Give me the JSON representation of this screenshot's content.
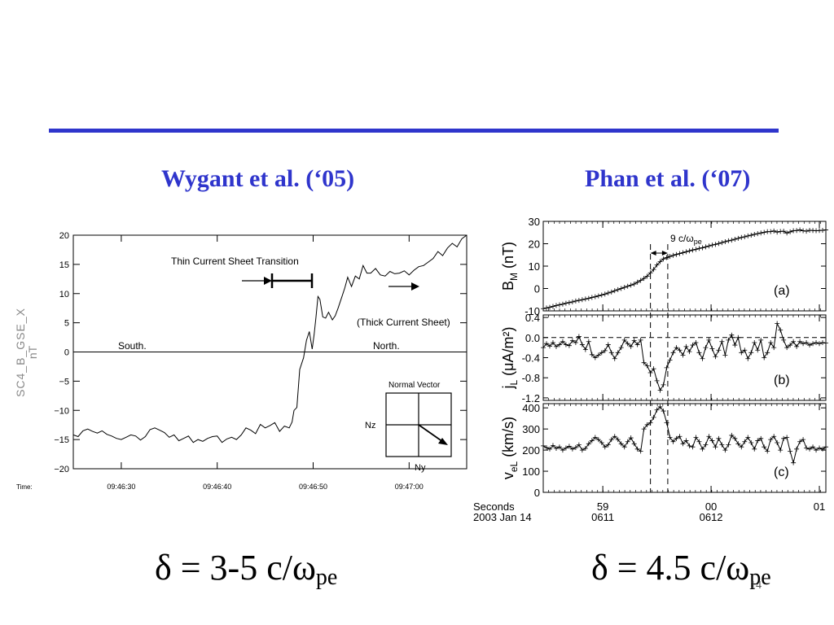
{
  "slide": {
    "left_heading": "Wygant et al. (‘05)",
    "right_heading": "Phan et al. (‘07)",
    "left_formula": {
      "main": "δ = 3-5 c/ω",
      "sub": "pe"
    },
    "right_formula": {
      "main": "δ = 4.5 c/ω",
      "sub": "pe"
    },
    "slide_number": "14",
    "colors": {
      "accent": "#2f35cc",
      "text": "#000000"
    }
  },
  "chart_data": [
    {
      "type": "line",
      "ylabel": "SC4_B_GSE_X",
      "yunit": "nT",
      "xlabel": "Time:",
      "ylim": [
        -20,
        20
      ],
      "yticks": [
        "20",
        "15",
        "10",
        "5",
        "0",
        "−5",
        "−10",
        "−15",
        "−20"
      ],
      "ytick_values": [
        20,
        15,
        10,
        5,
        0,
        -5,
        -10,
        -15,
        -20
      ],
      "xlim": [
        25,
        66
      ],
      "xticks": [
        "09:46:30",
        "09:46:40",
        "09:46:50",
        "09:47:00"
      ],
      "xtick_values": [
        30,
        40,
        50,
        60
      ],
      "annotations": {
        "thin": "Thin Current Sheet Transition",
        "thick": "(Thick Current Sheet)",
        "south": "South.",
        "north": "North."
      },
      "inset": {
        "title": "Normal Vector",
        "nz": "Nz",
        "ny": "Ny"
      },
      "x": [
        25,
        25.5,
        26,
        26.5,
        27,
        27.5,
        28,
        28.5,
        29,
        29.5,
        30,
        30.5,
        31,
        31.5,
        32,
        32.5,
        33,
        33.5,
        34,
        34.5,
        35,
        35.5,
        36,
        36.5,
        37,
        37.5,
        38,
        38.5,
        39,
        39.5,
        40,
        40.5,
        41,
        41.5,
        42,
        42.5,
        43,
        43.5,
        44,
        44.5,
        45,
        45.5,
        46,
        46.5,
        47,
        47.5,
        47.8,
        48,
        48.3,
        48.6,
        49,
        49.3,
        49.6,
        49.9,
        50.1,
        50.3,
        50.5,
        50.7,
        51,
        51.3,
        51.6,
        52,
        52.3,
        52.6,
        53,
        53.3,
        53.6,
        54,
        54.4,
        54.8,
        55.2,
        55.6,
        56,
        56.5,
        57,
        57.5,
        58,
        58.5,
        59,
        59.5,
        60,
        60.5,
        61,
        61.5,
        62,
        62.5,
        63,
        63.5,
        64,
        64.5,
        65,
        65.5,
        66
      ],
      "y": [
        -14.2,
        -14.5,
        -13.5,
        -13.2,
        -13.6,
        -13.9,
        -13.5,
        -14.1,
        -14.4,
        -14.8,
        -15.0,
        -14.6,
        -14.2,
        -14.4,
        -15.1,
        -14.5,
        -13.3,
        -13.0,
        -13.4,
        -13.8,
        -14.6,
        -14.2,
        -15.2,
        -14.8,
        -14.4,
        -15.5,
        -15.0,
        -15.3,
        -14.8,
        -14.5,
        -14.4,
        -15.5,
        -14.9,
        -14.6,
        -15.0,
        -14.2,
        -13.0,
        -13.4,
        -14.0,
        -12.4,
        -13.0,
        -12.6,
        -12.1,
        -13.6,
        -12.7,
        -13.0,
        -12.0,
        -10.0,
        -9.5,
        -3.0,
        -1.0,
        2.0,
        3.5,
        0.5,
        3.0,
        6.0,
        9.5,
        9.0,
        6.0,
        5.8,
        6.8,
        5.5,
        6.2,
        7.5,
        9.5,
        11.0,
        12.8,
        11.2,
        13.0,
        12.5,
        14.8,
        13.5,
        13.5,
        14.3,
        13.2,
        13.0,
        13.8,
        13.4,
        13.5,
        13.9,
        13.2,
        14.0,
        14.6,
        14.8,
        15.4,
        16.0,
        17.2,
        16.5,
        17.8,
        18.6,
        18.0,
        19.4,
        20.0
      ]
    },
    {
      "type": "line",
      "panels": [
        {
          "id": "a",
          "label": "(a)",
          "ylabel": "B",
          "ylabel_sub": "M",
          "yunit": "(nT)",
          "ylim": [
            -10,
            30
          ],
          "yticks": [
            "30",
            "20",
            "10",
            "0",
            "-10"
          ],
          "ytick_values": [
            30,
            20,
            10,
            0,
            -10
          ],
          "annotation": {
            "text": "9 c/ω",
            "sub": "pe"
          },
          "x": [
            0,
            0.03,
            0.06,
            0.09,
            0.12,
            0.15,
            0.18,
            0.21,
            0.24,
            0.27,
            0.3,
            0.33,
            0.36,
            0.39,
            0.42,
            0.45,
            0.48,
            0.51,
            0.54,
            0.57,
            0.6,
            0.63,
            0.66,
            0.69,
            0.72,
            0.75,
            0.78,
            0.81,
            0.84,
            0.87,
            0.9,
            0.93,
            0.96,
            0.99,
            1.02,
            1.05,
            1.08,
            1.11,
            1.14,
            1.17,
            1.2,
            1.23,
            1.26,
            1.29,
            1.32,
            1.35,
            1.38,
            1.41,
            1.44,
            1.47,
            1.5,
            1.53,
            1.56,
            1.59,
            1.62,
            1.65,
            1.68,
            1.71,
            1.74,
            1.77,
            1.8,
            1.83,
            1.86,
            1.89,
            1.92,
            1.95,
            1.98,
            2.01,
            2.04,
            2.07,
            2.1,
            2.13,
            2.16,
            2.19,
            2.22,
            2.25,
            2.28,
            2.31,
            2.34,
            2.37,
            2.4,
            2.43,
            2.46,
            2.49,
            2.52,
            2.55,
            2.58,
            2.61
          ],
          "y": [
            -9.0,
            -8.7,
            -8.4,
            -8.0,
            -7.6,
            -7.3,
            -7.0,
            -6.6,
            -6.3,
            -6.0,
            -5.6,
            -5.3,
            -5.0,
            -4.7,
            -4.4,
            -4.0,
            -3.7,
            -3.3,
            -2.9,
            -2.5,
            -2.0,
            -1.6,
            -1.0,
            -0.5,
            0.0,
            0.5,
            1.0,
            1.5,
            2.0,
            2.8,
            3.6,
            4.5,
            5.5,
            7.0,
            8.5,
            10.5,
            12.0,
            13.2,
            13.8,
            14.3,
            14.8,
            15.2,
            15.6,
            16.0,
            16.4,
            16.8,
            17.2,
            17.5,
            17.9,
            18.2,
            18.6,
            19.0,
            19.4,
            19.7,
            20.1,
            20.5,
            20.9,
            21.3,
            21.6,
            22.0,
            22.4,
            22.8,
            23.1,
            23.5,
            23.8,
            24.2,
            24.5,
            24.8,
            25.1,
            25.4,
            25.4,
            25.7,
            25.2,
            25.5,
            25.6,
            24.8,
            25.3,
            25.8,
            25.9,
            26.2,
            25.8,
            25.6,
            26.0,
            25.9,
            25.8,
            25.9,
            26.0,
            26.2
          ]
        },
        {
          "id": "b",
          "label": "(b)",
          "ylabel": "j",
          "ylabel_sub": "L",
          "yunit": "(μA/m²)",
          "ylim": [
            -1.25,
            0.45
          ],
          "yticks": [
            "0.4",
            "0.0",
            "-0.4",
            "-0.8",
            "-1.2"
          ],
          "ytick_values": [
            0.4,
            0.0,
            -0.4,
            -0.8,
            -1.2
          ],
          "x": [
            0,
            0.03,
            0.06,
            0.09,
            0.12,
            0.15,
            0.18,
            0.21,
            0.24,
            0.27,
            0.3,
            0.33,
            0.36,
            0.39,
            0.42,
            0.45,
            0.48,
            0.51,
            0.54,
            0.57,
            0.6,
            0.63,
            0.66,
            0.69,
            0.72,
            0.75,
            0.78,
            0.81,
            0.84,
            0.87,
            0.9,
            0.93,
            0.96,
            0.99,
            1.02,
            1.05,
            1.08,
            1.11,
            1.14,
            1.17,
            1.2,
            1.23,
            1.26,
            1.29,
            1.32,
            1.35,
            1.38,
            1.41,
            1.44,
            1.47,
            1.5,
            1.53,
            1.56,
            1.59,
            1.62,
            1.65,
            1.68,
            1.71,
            1.74,
            1.77,
            1.8,
            1.83,
            1.86,
            1.89,
            1.92,
            1.95,
            1.98,
            2.01,
            2.04,
            2.07,
            2.1,
            2.13,
            2.16,
            2.19,
            2.22,
            2.25,
            2.28,
            2.31,
            2.34,
            2.37,
            2.4,
            2.43,
            2.46,
            2.49,
            2.52,
            2.55,
            2.58,
            2.61
          ],
          "y": [
            -0.2,
            -0.12,
            -0.17,
            -0.1,
            -0.18,
            -0.14,
            -0.08,
            -0.14,
            -0.16,
            -0.06,
            -0.1,
            0.02,
            -0.14,
            -0.24,
            -0.08,
            -0.34,
            -0.4,
            -0.35,
            -0.3,
            -0.26,
            -0.14,
            -0.3,
            -0.42,
            -0.3,
            -0.2,
            -0.05,
            -0.12,
            -0.18,
            -0.06,
            -0.14,
            -0.05,
            -0.5,
            -0.56,
            -0.7,
            -0.62,
            -0.86,
            -1.05,
            -0.94,
            -0.6,
            -0.45,
            -0.3,
            -0.2,
            -0.25,
            -0.35,
            -0.18,
            -0.28,
            -0.15,
            -0.1,
            -0.3,
            -0.42,
            -0.2,
            -0.05,
            -0.22,
            -0.38,
            -0.25,
            -0.08,
            -0.35,
            -0.05,
            0.05,
            -0.15,
            0.0,
            -0.3,
            -0.25,
            -0.42,
            -0.3,
            -0.1,
            -0.25,
            -0.05,
            -0.4,
            -0.3,
            -0.1,
            -0.2,
            0.28,
            0.15,
            -0.05,
            -0.2,
            -0.15,
            -0.08,
            -0.18,
            -0.08,
            -0.12,
            -0.1,
            -0.15,
            -0.12,
            -0.1,
            -0.12,
            -0.1,
            -0.11
          ]
        },
        {
          "id": "c",
          "label": "(c)",
          "ylabel": "v",
          "ylabel_sub": "eL",
          "yunit": "(km/s)",
          "ylim": [
            0,
            420
          ],
          "yticks": [
            "400",
            "300",
            "200",
            "100",
            "0"
          ],
          "ytick_values": [
            400,
            300,
            200,
            100,
            0
          ],
          "x": [
            0,
            0.03,
            0.06,
            0.09,
            0.12,
            0.15,
            0.18,
            0.21,
            0.24,
            0.27,
            0.3,
            0.33,
            0.36,
            0.39,
            0.42,
            0.45,
            0.48,
            0.51,
            0.54,
            0.57,
            0.6,
            0.63,
            0.66,
            0.69,
            0.72,
            0.75,
            0.78,
            0.81,
            0.84,
            0.87,
            0.9,
            0.93,
            0.96,
            0.99,
            1.02,
            1.05,
            1.08,
            1.11,
            1.14,
            1.17,
            1.2,
            1.23,
            1.26,
            1.29,
            1.32,
            1.35,
            1.38,
            1.41,
            1.44,
            1.47,
            1.5,
            1.53,
            1.56,
            1.59,
            1.62,
            1.65,
            1.68,
            1.71,
            1.74,
            1.77,
            1.8,
            1.83,
            1.86,
            1.89,
            1.92,
            1.95,
            1.98,
            2.01,
            2.04,
            2.07,
            2.1,
            2.13,
            2.16,
            2.19,
            2.22,
            2.25,
            2.28,
            2.31,
            2.34,
            2.37,
            2.4,
            2.43,
            2.46,
            2.49,
            2.52,
            2.55,
            2.58,
            2.61
          ],
          "y": [
            220,
            212,
            205,
            222,
            208,
            215,
            200,
            210,
            218,
            205,
            212,
            225,
            200,
            208,
            230,
            245,
            260,
            250,
            235,
            215,
            225,
            250,
            265,
            250,
            230,
            215,
            240,
            258,
            230,
            205,
            195,
            300,
            320,
            330,
            355,
            390,
            405,
            385,
            330,
            260,
            240,
            255,
            265,
            230,
            245,
            220,
            215,
            260,
            240,
            205,
            225,
            265,
            245,
            215,
            255,
            225,
            200,
            225,
            270,
            255,
            230,
            215,
            240,
            260,
            235,
            205,
            245,
            255,
            215,
            195,
            250,
            265,
            235,
            200,
            255,
            260,
            195,
            140,
            205,
            240,
            250,
            210,
            205,
            215,
            200,
            210,
            205,
            215
          ]
        }
      ],
      "xlim": [
        0,
        2.61
      ],
      "xlabel": "Seconds",
      "date_label": "2003 Jan 14",
      "xticks": [
        {
          "value": 0.55,
          "top": "59",
          "bottom": "0611"
        },
        {
          "value": 1.55,
          "top": "00",
          "bottom": "0612"
        },
        {
          "value": 2.55,
          "top": "01",
          "bottom": ""
        }
      ],
      "vlines": [
        0.99,
        1.15
      ]
    }
  ]
}
